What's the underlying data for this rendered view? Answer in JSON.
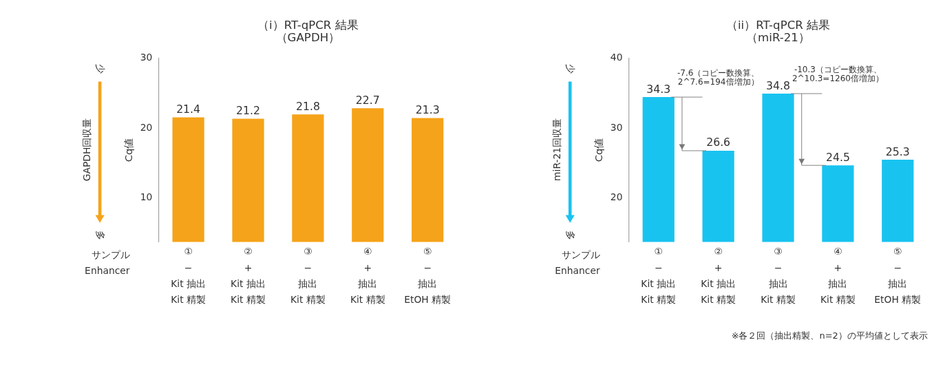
{
  "chart_data": [
    {
      "type": "bar",
      "title": "（i）RT-qPCR 結果（GAPDH）",
      "ylabel": "Cq値",
      "color": "#f5a31a",
      "data_labels": true,
      "ylim": [
        3.5,
        30
      ],
      "yticks": [
        10,
        20,
        30
      ],
      "categories": [
        "①\n−\n\nKit 抽出\nKit 精製",
        "②\n+\n\nKit 抽出\nKit 精製",
        "③\n−\n\n抽出\nKit 精製",
        "④\n+\n\n抽出\nKit 精製",
        "⑤\n−\n\n抽出\nEtOH 精製"
      ],
      "values": [
        21.4,
        21.2,
        21.8,
        22.7,
        21.3
      ],
      "annotations": [
        "サンプル",
        "Enhancer",
        "GAPDH回収量",
        "少",
        "多"
      ]
    },
    {
      "type": "bar",
      "title": "（ii）RT-qPCR 結果（miR-21）",
      "ylabel": "Cq値",
      "color": "#19c3f0",
      "data_labels": true,
      "ylim": [
        13.5,
        40
      ],
      "yticks": [
        20,
        30,
        40
      ],
      "categories": [
        "①\n−\n\nKit 抽出\nKit 精製",
        "②\n+\n\nKit 抽出\nKit 精製",
        "③\n−\n\n抽出\nKit 精製",
        "④\n+\n\n抽出\nKit 精製",
        "⑤\n−\n\n抽出\nEtOH 精製"
      ],
      "values": [
        34.3,
        26.6,
        34.8,
        24.5,
        25.3
      ],
      "annotations": [
        "サンプル",
        "Enhancer",
        "miR-21回収量",
        "少",
        "多",
        "-7.6（コピー数換算、\n2^7.6=194倍増加）",
        "-10.3（コピー数換算、\n2^10.3=1260倍増加）",
        "※各２回（抽出精製、n=2）の平均値として表示"
      ]
    }
  ]
}
